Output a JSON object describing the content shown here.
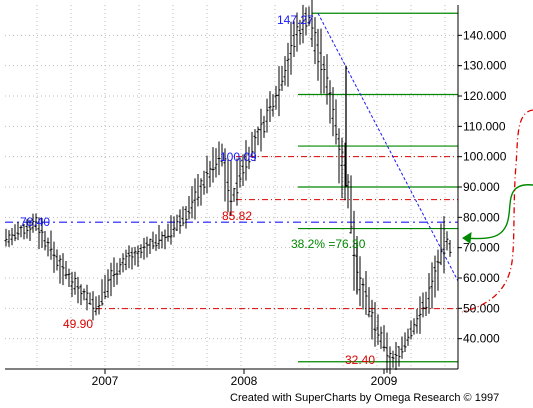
{
  "credit": "Created with SuperCharts by Omega Research © 1997",
  "chart_data": {
    "type": "ohlc",
    "y_ticks": [
      40,
      50,
      60,
      70,
      80,
      90,
      100,
      110,
      120,
      130,
      140
    ],
    "y_tick_labels": [
      "40.000",
      "50.000",
      "60.000",
      "70.000",
      "80.000",
      "90.000",
      "100.000",
      "110.000",
      "120.000",
      "130.000",
      "140.000"
    ],
    "ylim": [
      30,
      150
    ],
    "x_labels": [
      "2007",
      "2008",
      "2009"
    ],
    "grid": true,
    "colors": {
      "bars": "#000000",
      "blue": "#1a1aff",
      "red": "#dd0000",
      "green": "#008800",
      "grid": "#bdbdbd"
    },
    "price_path": [
      [
        0,
        74
      ],
      [
        10,
        73
      ],
      [
        20,
        75
      ],
      [
        30,
        77
      ],
      [
        36,
        78.4
      ],
      [
        44,
        73
      ],
      [
        52,
        69
      ],
      [
        60,
        64
      ],
      [
        70,
        60
      ],
      [
        80,
        56
      ],
      [
        90,
        53
      ],
      [
        96,
        49.9
      ],
      [
        104,
        55
      ],
      [
        112,
        61
      ],
      [
        120,
        64
      ],
      [
        130,
        67
      ],
      [
        140,
        68
      ],
      [
        150,
        71
      ],
      [
        160,
        73
      ],
      [
        168,
        74
      ],
      [
        178,
        78
      ],
      [
        188,
        82
      ],
      [
        198,
        88
      ],
      [
        208,
        94
      ],
      [
        218,
        99
      ],
      [
        222,
        100.09
      ],
      [
        228,
        92
      ],
      [
        232,
        85.82
      ],
      [
        238,
        92
      ],
      [
        246,
        99
      ],
      [
        256,
        105
      ],
      [
        266,
        112
      ],
      [
        276,
        120
      ],
      [
        286,
        130
      ],
      [
        296,
        140
      ],
      [
        304,
        144
      ],
      [
        308,
        147.27
      ],
      [
        314,
        140
      ],
      [
        320,
        132
      ],
      [
        326,
        125
      ],
      [
        332,
        118
      ],
      [
        336,
        110
      ],
      [
        340,
        103
      ],
      [
        344,
        96
      ],
      [
        348,
        88
      ],
      [
        352,
        78
      ],
      [
        356,
        68
      ],
      [
        360,
        60
      ],
      [
        366,
        53
      ],
      [
        372,
        47
      ],
      [
        378,
        42
      ],
      [
        384,
        38
      ],
      [
        388,
        35
      ],
      [
        392,
        32.4
      ],
      [
        398,
        35
      ],
      [
        404,
        38
      ],
      [
        412,
        43
      ],
      [
        420,
        48
      ],
      [
        426,
        52
      ],
      [
        432,
        58
      ],
      [
        438,
        64
      ],
      [
        442,
        69
      ],
      [
        445,
        72
      ],
      [
        449,
        71
      ],
      [
        452,
        68
      ]
    ],
    "annotations": [
      {
        "label": "147.27",
        "value": 147.27,
        "color": "blue"
      },
      {
        "label": "100.09",
        "value": 100.09,
        "color": "blue"
      },
      {
        "label": "78.40",
        "value": 78.4,
        "color": "blue"
      },
      {
        "label": "85.82",
        "value": 85.82,
        "color": "red"
      },
      {
        "label": "49.90",
        "value": 49.9,
        "color": "red"
      },
      {
        "label": "32.40",
        "value": 32.4,
        "color": "red"
      },
      {
        "label": "38.2% =76.30",
        "value": 76.3,
        "color": "green"
      }
    ],
    "fib_levels": [
      147.27,
      120.5,
      103.5,
      90,
      76.3,
      32.4
    ],
    "red_levels": [
      100,
      85.82,
      49.9
    ],
    "blue_level": 78.4
  }
}
